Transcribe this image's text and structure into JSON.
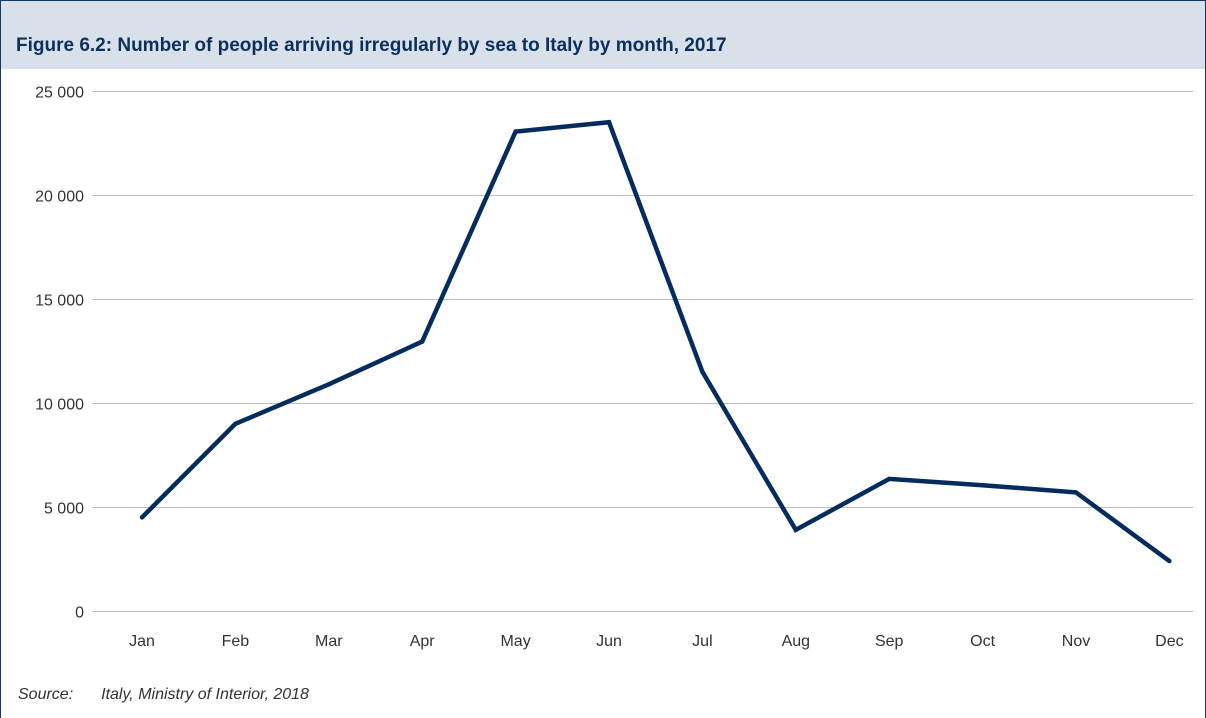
{
  "figure": {
    "title": "Figure 6.2: Number of people arriving irregularly by sea to Italy by month, 2017",
    "source_label": "Source:",
    "source_text": "Italy, Ministry of Interior, 2018"
  },
  "colors": {
    "line": "#052c5c",
    "title": "#0c2f5c",
    "title_band": "#d8e1ea",
    "grid": "#bfbfbf",
    "frame": "#0f3a66"
  },
  "chart_data": {
    "type": "line",
    "title": "Figure 6.2: Number of people arriving irregularly by sea to Italy by month, 2017",
    "xlabel": "",
    "ylabel": "",
    "categories": [
      "Jan",
      "Feb",
      "Mar",
      "Apr",
      "May",
      "Jun",
      "Jul",
      "Aug",
      "Sep",
      "Oct",
      "Nov",
      "Dec"
    ],
    "series": [
      {
        "values": [
          4500,
          9000,
          10900,
          12950,
          23050,
          23500,
          11500,
          3900,
          6350,
          6050,
          5700,
          2400
        ]
      }
    ],
    "ylim": [
      0,
      25000
    ],
    "yticks": [
      0,
      5000,
      10000,
      15000,
      20000,
      25000
    ],
    "ytick_labels": [
      "0",
      "5 000",
      "10 000",
      "15 000",
      "20 000",
      "25 000"
    ],
    "grid": "horizontal",
    "legend": "none"
  }
}
